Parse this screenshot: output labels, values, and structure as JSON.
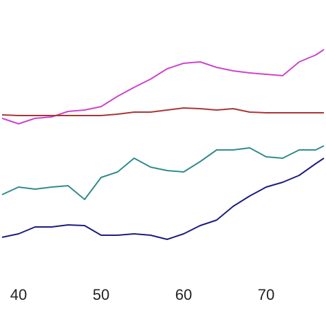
{
  "chart_data": {
    "type": "line",
    "x": [
      38,
      40,
      42,
      44,
      46,
      48,
      50,
      52,
      54,
      56,
      58,
      60,
      62,
      64,
      66,
      68,
      70,
      72,
      74,
      76,
      77
    ],
    "series": [
      {
        "color": "#cc44cc",
        "values": [
          57,
          55,
          57,
          57.5,
          59.5,
          60,
          61.25,
          65,
          68.25,
          71.25,
          75,
          77,
          77.5,
          75.5,
          74.25,
          73.5,
          73,
          72.5,
          77.5,
          80,
          82
        ]
      },
      {
        "color": "#aa3333",
        "values": [
          58.25,
          58,
          58,
          58,
          58,
          58,
          58,
          58.5,
          59.25,
          59.25,
          60,
          60.75,
          60.5,
          60,
          60.5,
          59.25,
          59,
          59,
          59,
          59,
          59
        ]
      },
      {
        "color": "#2e8b8b",
        "values": [
          29.25,
          32,
          31.25,
          32,
          32.5,
          27.5,
          35.5,
          37.5,
          42.5,
          39.25,
          38,
          37.5,
          41.25,
          45.5,
          45.5,
          46.25,
          43,
          42.5,
          45.5,
          45.5,
          47
        ]
      },
      {
        "color": "#1a1a80",
        "values": [
          13.75,
          15,
          17.5,
          17.5,
          18.25,
          18,
          14.5,
          14.5,
          15,
          14.5,
          13,
          15,
          18,
          20,
          25,
          28.75,
          32,
          33.75,
          36.25,
          40.5,
          42.5
        ]
      }
    ],
    "xlim": [
      37.75,
      77.25
    ],
    "xticks": [
      40,
      50,
      60,
      70
    ],
    "ylim": [
      0,
      100
    ]
  }
}
